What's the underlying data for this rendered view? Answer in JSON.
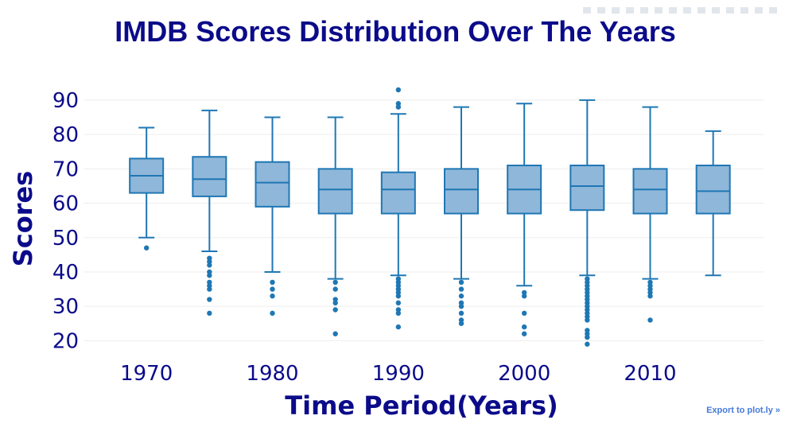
{
  "export_link": "Export to plot.ly »",
  "modebar": {
    "icons": [
      "camera-icon",
      "edit-icon",
      "zoom-icon",
      "pan-icon",
      "box-select-icon",
      "lasso-select-icon",
      "zoom-in-icon",
      "zoom-out-icon",
      "autoscale-icon",
      "reset-axes-icon",
      "spike-lines-icon",
      "hover-closest-icon",
      "hover-compare-icon",
      "plotly-logo-icon"
    ]
  },
  "colors": {
    "title": "#0b0b8a",
    "box_fill": "#8fb7d9",
    "box_line": "#1f77b4",
    "outlier": "#1f77b4",
    "grid": "#eeeeee",
    "tick": "#0b0b8a"
  },
  "chart_data": {
    "type": "box",
    "title": "IMDB Scores Distribution Over The Years",
    "xlabel": "Time Period(Years)",
    "ylabel": "Scores",
    "xlim": [
      1965,
      2019
    ],
    "ylim": [
      15,
      96
    ],
    "xticks": [
      1970,
      1980,
      1990,
      2000,
      2010
    ],
    "yticks": [
      20,
      30,
      40,
      50,
      60,
      70,
      80,
      90
    ],
    "grid": true,
    "boxes": [
      {
        "x": 1970,
        "lowerfence": 50,
        "q1": 63,
        "median": 68,
        "q3": 73,
        "upperfence": 82,
        "outliers": [
          47
        ]
      },
      {
        "x": 1975,
        "lowerfence": 46,
        "q1": 62,
        "median": 67,
        "q3": 73.5,
        "upperfence": 87,
        "outliers": [
          44,
          43,
          42,
          40,
          39,
          37,
          36,
          35,
          32,
          28
        ]
      },
      {
        "x": 1980,
        "lowerfence": 40,
        "q1": 59,
        "median": 66,
        "q3": 72,
        "upperfence": 85,
        "outliers": [
          37,
          35,
          33,
          28
        ]
      },
      {
        "x": 1985,
        "lowerfence": 38,
        "q1": 57,
        "median": 64,
        "q3": 70,
        "upperfence": 85,
        "outliers": [
          37,
          35,
          32,
          31,
          29,
          22
        ]
      },
      {
        "x": 1990,
        "lowerfence": 39,
        "q1": 57,
        "median": 64,
        "q3": 69,
        "upperfence": 86,
        "outliers": [
          93,
          89,
          88,
          38,
          37,
          36,
          35,
          34,
          33,
          31,
          29,
          28,
          24
        ]
      },
      {
        "x": 1995,
        "lowerfence": 38,
        "q1": 57,
        "median": 64,
        "q3": 70,
        "upperfence": 88,
        "outliers": [
          37,
          35,
          33,
          31,
          30,
          28,
          26,
          25
        ]
      },
      {
        "x": 2000,
        "lowerfence": 36,
        "q1": 57,
        "median": 64,
        "q3": 71,
        "upperfence": 89,
        "outliers": [
          34,
          33,
          28,
          24,
          22
        ]
      },
      {
        "x": 2005,
        "lowerfence": 39,
        "q1": 58,
        "median": 65,
        "q3": 71,
        "upperfence": 90,
        "outliers": [
          38,
          37,
          36,
          35,
          34,
          33,
          32,
          31,
          30,
          29,
          28,
          27,
          26,
          23,
          22,
          21,
          19
        ]
      },
      {
        "x": 2010,
        "lowerfence": 38,
        "q1": 57,
        "median": 64,
        "q3": 70,
        "upperfence": 88,
        "outliers": [
          37,
          36,
          35,
          34,
          33,
          26
        ]
      },
      {
        "x": 2015,
        "lowerfence": 39,
        "q1": 57,
        "median": 63.5,
        "q3": 71,
        "upperfence": 81,
        "outliers": []
      }
    ]
  }
}
